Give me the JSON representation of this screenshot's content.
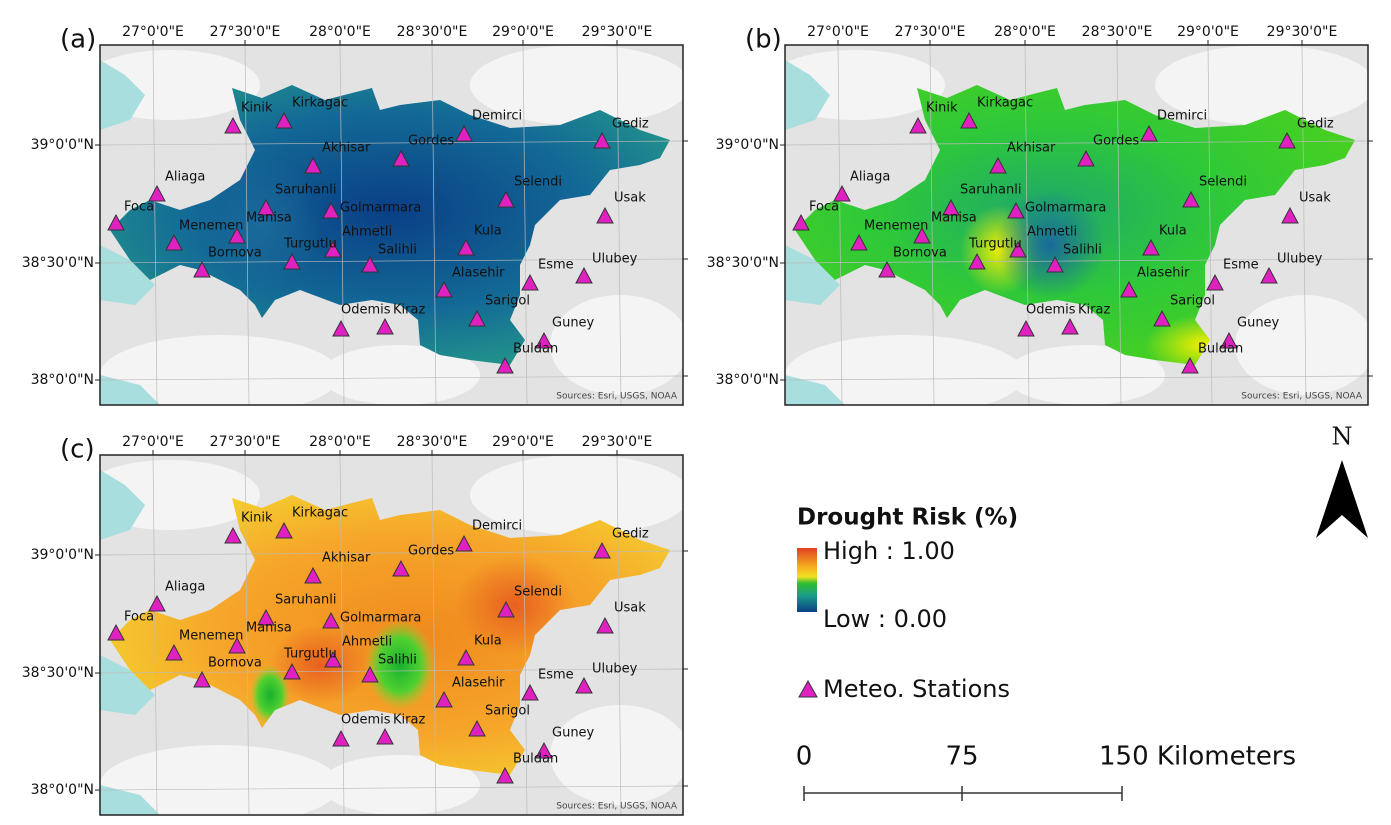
{
  "panels": [
    {
      "label": "(a)"
    },
    {
      "label": "(b)"
    },
    {
      "label": "(c)"
    }
  ],
  "map": {
    "lon_ticks": [
      "27°0'0\"E",
      "27°30'0\"E",
      "28°0'0\"E",
      "28°30'0\"E",
      "29°0'0\"E",
      "29°30'0\"E"
    ],
    "lat_ticks": [
      "39°0'0\"N",
      "38°30'0\"N",
      "38°0'0\"N"
    ],
    "credit": "Sources: Esri, USGS, NOAA",
    "stations": [
      "Kinik",
      "Kirkagac",
      "Demirci",
      "Gediz",
      "Akhisar",
      "Gordes",
      "Aliaga",
      "Saruhanli",
      "Selendi",
      "Foca",
      "Golmarmara",
      "Usak",
      "Menemen",
      "Manisa",
      "Ahmetli",
      "Turgutlu",
      "Salihli",
      "Kula",
      "Bornova",
      "Esme",
      "Ulubey",
      "Alasehir",
      "Sarigol",
      "Odemis",
      "Kiraz",
      "Guney",
      "Buldan"
    ]
  },
  "legend": {
    "title": "Drought Risk (%)",
    "high": "High : 1.00",
    "low": "Low : 0.00",
    "stations": "Meteo. Stations"
  },
  "scale_bar": {
    "labels": [
      "0",
      "75",
      "150 Kilometers"
    ]
  },
  "north": "N"
}
